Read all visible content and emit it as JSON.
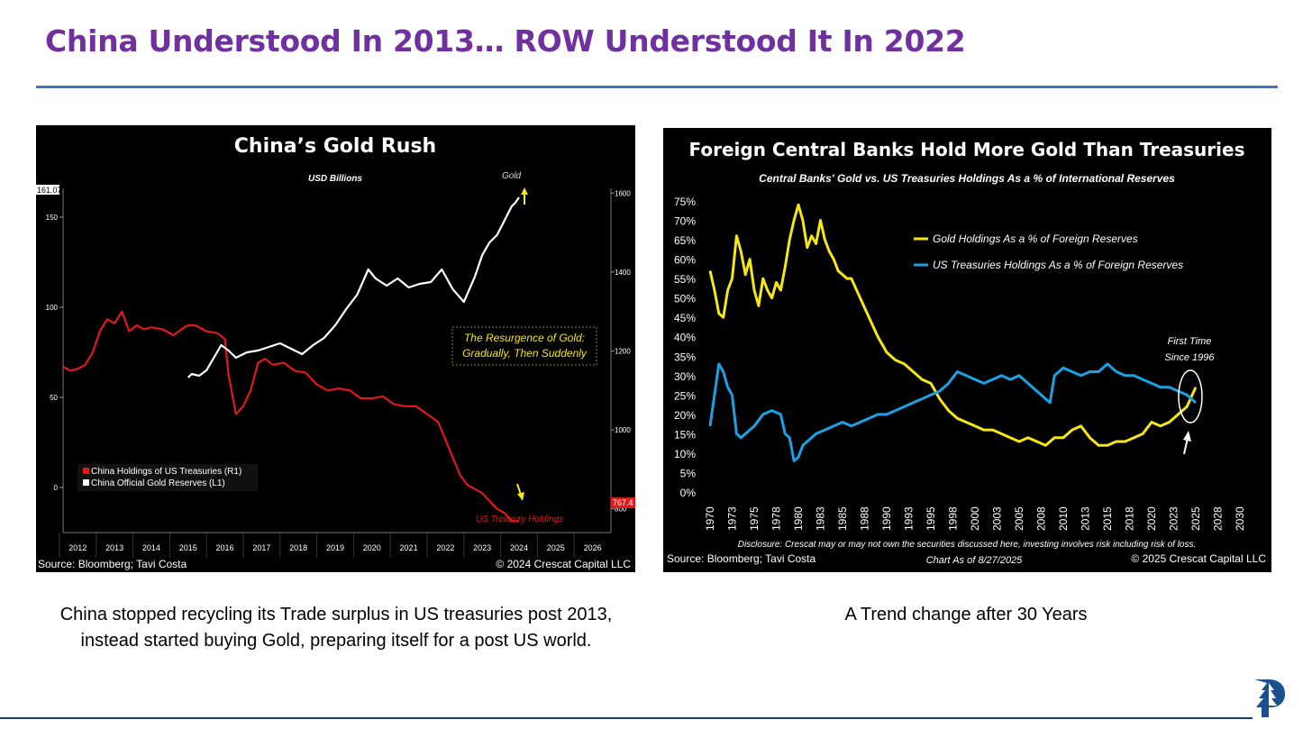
{
  "slide": {
    "title": "China Understood In 2013… ROW Understood It In 2022",
    "left_caption": "China stopped recycling its Trade surplus in US treasuries post 2013, instead started buying Gold, preparing itself for a post US world.",
    "right_caption": "A Trend change after 30 Years",
    "logo_icon": "pine-tree-logo-icon",
    "accent_color": "#7030a0",
    "rule_color": "#4472c4"
  },
  "chart_data": [
    {
      "type": "line",
      "title": "China’s Gold Rush",
      "subtitle": "USD Billions",
      "source": "Source: Bloomberg; Tavi Costa",
      "copyright": "© 2024 Crescat Capital LLC",
      "x_ticks": [
        "2012",
        "2013",
        "2014",
        "2015",
        "2016",
        "2017",
        "2018",
        "2019",
        "2020",
        "2021",
        "2022",
        "2023",
        "2024",
        "2025",
        "2026"
      ],
      "xlim": [
        2011.6,
        2026.5
      ],
      "y_left": {
        "label": "L1",
        "ticks": [
          "0",
          "50",
          "100",
          "150"
        ],
        "tick_values": [
          0,
          50,
          100,
          150
        ],
        "ylim": [
          -25,
          166
        ],
        "last_value": "161.07"
      },
      "y_right": {
        "label": "R1",
        "ticks": [
          "800",
          "1000",
          "1200",
          "1400",
          "1600"
        ],
        "tick_values": [
          800,
          1000,
          1200,
          1400,
          1600
        ],
        "ylim": [
          740,
          1612
        ],
        "last_value": "767.4"
      },
      "legend": {
        "position": "bottom-left",
        "entries": [
          "China Holdings of US Treasuries (R1)",
          "China Official Gold Reserves (L1)"
        ]
      },
      "annotation_box": [
        "The Resurgence of Gold:",
        "Gradually, Then Suddenly"
      ],
      "labels": {
        "gold": "Gold",
        "treasury": "US Treasury Holdings"
      },
      "series": [
        {
          "name": "China Holdings of US Treasuries (R1)",
          "axis": "right",
          "color": "#e01a1a",
          "x": [
            2011.6,
            2011.8,
            2012.0,
            2012.2,
            2012.4,
            2012.6,
            2012.8,
            2013.0,
            2013.2,
            2013.4,
            2013.6,
            2013.8,
            2014.0,
            2014.3,
            2014.6,
            2014.9,
            2015.0,
            2015.2,
            2015.5,
            2015.8,
            2016.0,
            2016.1,
            2016.3,
            2016.5,
            2016.7,
            2016.9,
            2017.1,
            2017.3,
            2017.6,
            2017.9,
            2018.2,
            2018.5,
            2018.8,
            2019.1,
            2019.4,
            2019.7,
            2020.0,
            2020.3,
            2020.6,
            2020.9,
            2021.2,
            2021.5,
            2021.8,
            2022.0,
            2022.2,
            2022.4,
            2022.6,
            2022.8,
            2023.0,
            2023.2,
            2023.4,
            2023.6,
            2023.8,
            2024.0
          ],
          "values": [
            1160,
            1150,
            1155,
            1165,
            1195,
            1250,
            1280,
            1270,
            1300,
            1250,
            1265,
            1255,
            1260,
            1255,
            1240,
            1260,
            1265,
            1265,
            1250,
            1245,
            1230,
            1140,
            1040,
            1060,
            1100,
            1170,
            1180,
            1165,
            1170,
            1150,
            1145,
            1115,
            1100,
            1105,
            1100,
            1080,
            1080,
            1085,
            1065,
            1060,
            1060,
            1040,
            1020,
            975,
            930,
            885,
            860,
            850,
            840,
            820,
            800,
            790,
            770,
            768
          ]
        },
        {
          "name": "China Official Gold Reserves (L1)",
          "axis": "left",
          "color": "#ffffff",
          "x": [
            2015.0,
            2015.1,
            2015.3,
            2015.5,
            2015.7,
            2015.9,
            2016.1,
            2016.3,
            2016.6,
            2016.9,
            2017.2,
            2017.5,
            2017.8,
            2018.1,
            2018.4,
            2018.7,
            2019.0,
            2019.3,
            2019.6,
            2019.9,
            2020.1,
            2020.4,
            2020.7,
            2021.0,
            2021.3,
            2021.6,
            2021.9,
            2022.2,
            2022.5,
            2022.8,
            2023.0,
            2023.2,
            2023.4,
            2023.6,
            2023.8,
            2023.9,
            2024.0
          ],
          "values": [
            61,
            63,
            62,
            65,
            72,
            79,
            76,
            72,
            75,
            76,
            78,
            80,
            77,
            74,
            79,
            83,
            90,
            99,
            107,
            121,
            116,
            112,
            116,
            111,
            113,
            114,
            121,
            110,
            103,
            117,
            129,
            136,
            140,
            148,
            156,
            158,
            161
          ]
        }
      ]
    },
    {
      "type": "line",
      "title": "Foreign Central Banks Hold More Gold Than Treasuries",
      "subtitle": "Central Banks' Gold vs. US Treasuries Holdings As a % of International Reserves",
      "source": "Source: Bloomberg; Tavi Costa",
      "copyright": "© 2025 Crescat Capital LLC",
      "disclosure": "Disclosure: Crescat may or may not own the securities discussed here, investing involves risk including risk of loss.",
      "chart_as_of": "Chart As of 8/27/2025",
      "annotation": [
        "First Time",
        "Since 1996"
      ],
      "x_ticks": [
        "1970",
        "1973",
        "1975",
        "1978",
        "1980",
        "1983",
        "1985",
        "1988",
        "1990",
        "1993",
        "1995",
        "1998",
        "2000",
        "2003",
        "2005",
        "2008",
        "2010",
        "2013",
        "2015",
        "2018",
        "2020",
        "2023",
        "2025",
        "2028",
        "2030"
      ],
      "x_tick_values": [
        1970,
        1972.5,
        1975,
        1977.5,
        1980,
        1982.5,
        1985,
        1987.5,
        1990,
        1992.5,
        1995,
        1997.5,
        2000,
        2002.5,
        2005,
        2007.5,
        2010,
        2012.5,
        2015,
        2017.5,
        2020,
        2022.5,
        2025,
        2027.5,
        2030
      ],
      "xlim": [
        1970,
        2030
      ],
      "y_ticks": [
        "0%",
        "5%",
        "10%",
        "15%",
        "20%",
        "25%",
        "30%",
        "35%",
        "40%",
        "45%",
        "50%",
        "55%",
        "60%",
        "65%",
        "70%",
        "75%"
      ],
      "y_tick_values": [
        0,
        5,
        10,
        15,
        20,
        25,
        30,
        35,
        40,
        45,
        50,
        55,
        60,
        65,
        70,
        75
      ],
      "ylim": [
        0,
        75
      ],
      "legend": {
        "position": "top-right",
        "entries": [
          "Gold Holdings As a % of Foreign Reserves",
          "US Treasuries Holdings As a % of Foreign Reserves"
        ]
      },
      "series": [
        {
          "name": "Gold Holdings As a % of Foreign Reserves",
          "color": "#f5e616",
          "x": [
            1970,
            1970.5,
            1971,
            1971.5,
            1972,
            1972.5,
            1973,
            1973.5,
            1974,
            1974.5,
            1975,
            1975.5,
            1976,
            1976.5,
            1977,
            1977.5,
            1978,
            1978.5,
            1979,
            1979.5,
            1980,
            1980.5,
            1981,
            1981.5,
            1982,
            1982.5,
            1983,
            1983.5,
            1984,
            1984.5,
            1985,
            1985.5,
            1986,
            1987,
            1988,
            1989,
            1990,
            1991,
            1992,
            1993,
            1994,
            1995,
            1996,
            1997,
            1998,
            1999,
            2000,
            2001,
            2002,
            2003,
            2004,
            2005,
            2006,
            2007,
            2008,
            2009,
            2010,
            2011,
            2012,
            2013,
            2014,
            2015,
            2016,
            2017,
            2018,
            2019,
            2020,
            2021,
            2022,
            2023,
            2024,
            2025
          ],
          "values": [
            57,
            52,
            46,
            45,
            52,
            55,
            66,
            62,
            56,
            60,
            52,
            48,
            55,
            52,
            50,
            54,
            52,
            58,
            65,
            70,
            74,
            70,
            63,
            66,
            64,
            70,
            65,
            62,
            60,
            57,
            56,
            55,
            55,
            50,
            45,
            40,
            36,
            34,
            33,
            31,
            29,
            28,
            24,
            21,
            19,
            18,
            17,
            16,
            16,
            15,
            14,
            13,
            14,
            13,
            12,
            14,
            14,
            16,
            17,
            14,
            12,
            12,
            13,
            13,
            14,
            15,
            18,
            17,
            18,
            20,
            22,
            27
          ]
        },
        {
          "name": "US Treasuries Holdings As a % of Foreign Reserves",
          "color": "#1ba2e6",
          "x": [
            1970,
            1970.5,
            1971,
            1971.5,
            1972,
            1972.5,
            1973,
            1973.5,
            1974,
            1975,
            1976,
            1977,
            1978,
            1978.5,
            1979,
            1979.5,
            1980,
            1980.5,
            1981,
            1982,
            1983,
            1984,
            1985,
            1986,
            1987,
            1988,
            1989,
            1990,
            1991,
            1992,
            1993,
            1994,
            1995,
            1996,
            1997,
            1998,
            1999,
            2000,
            2001,
            2002,
            2003,
            2004,
            2005,
            2006,
            2007,
            2008,
            2008.5,
            2009,
            2010,
            2011,
            2012,
            2013,
            2014,
            2015,
            2016,
            2017,
            2018,
            2019,
            2020,
            2021,
            2022,
            2023,
            2024,
            2025
          ],
          "values": [
            17,
            25,
            33,
            31,
            27,
            25,
            15,
            14,
            15,
            17,
            20,
            21,
            20,
            15,
            14,
            8,
            9,
            12,
            13,
            15,
            16,
            17,
            18,
            17,
            18,
            19,
            20,
            20,
            21,
            22,
            23,
            24,
            25,
            26,
            28,
            31,
            30,
            29,
            28,
            29,
            30,
            29,
            30,
            28,
            26,
            24,
            23,
            30,
            32,
            31,
            30,
            31,
            31,
            33,
            31,
            30,
            30,
            29,
            28,
            27,
            27,
            26,
            25,
            23
          ]
        }
      ]
    }
  ]
}
